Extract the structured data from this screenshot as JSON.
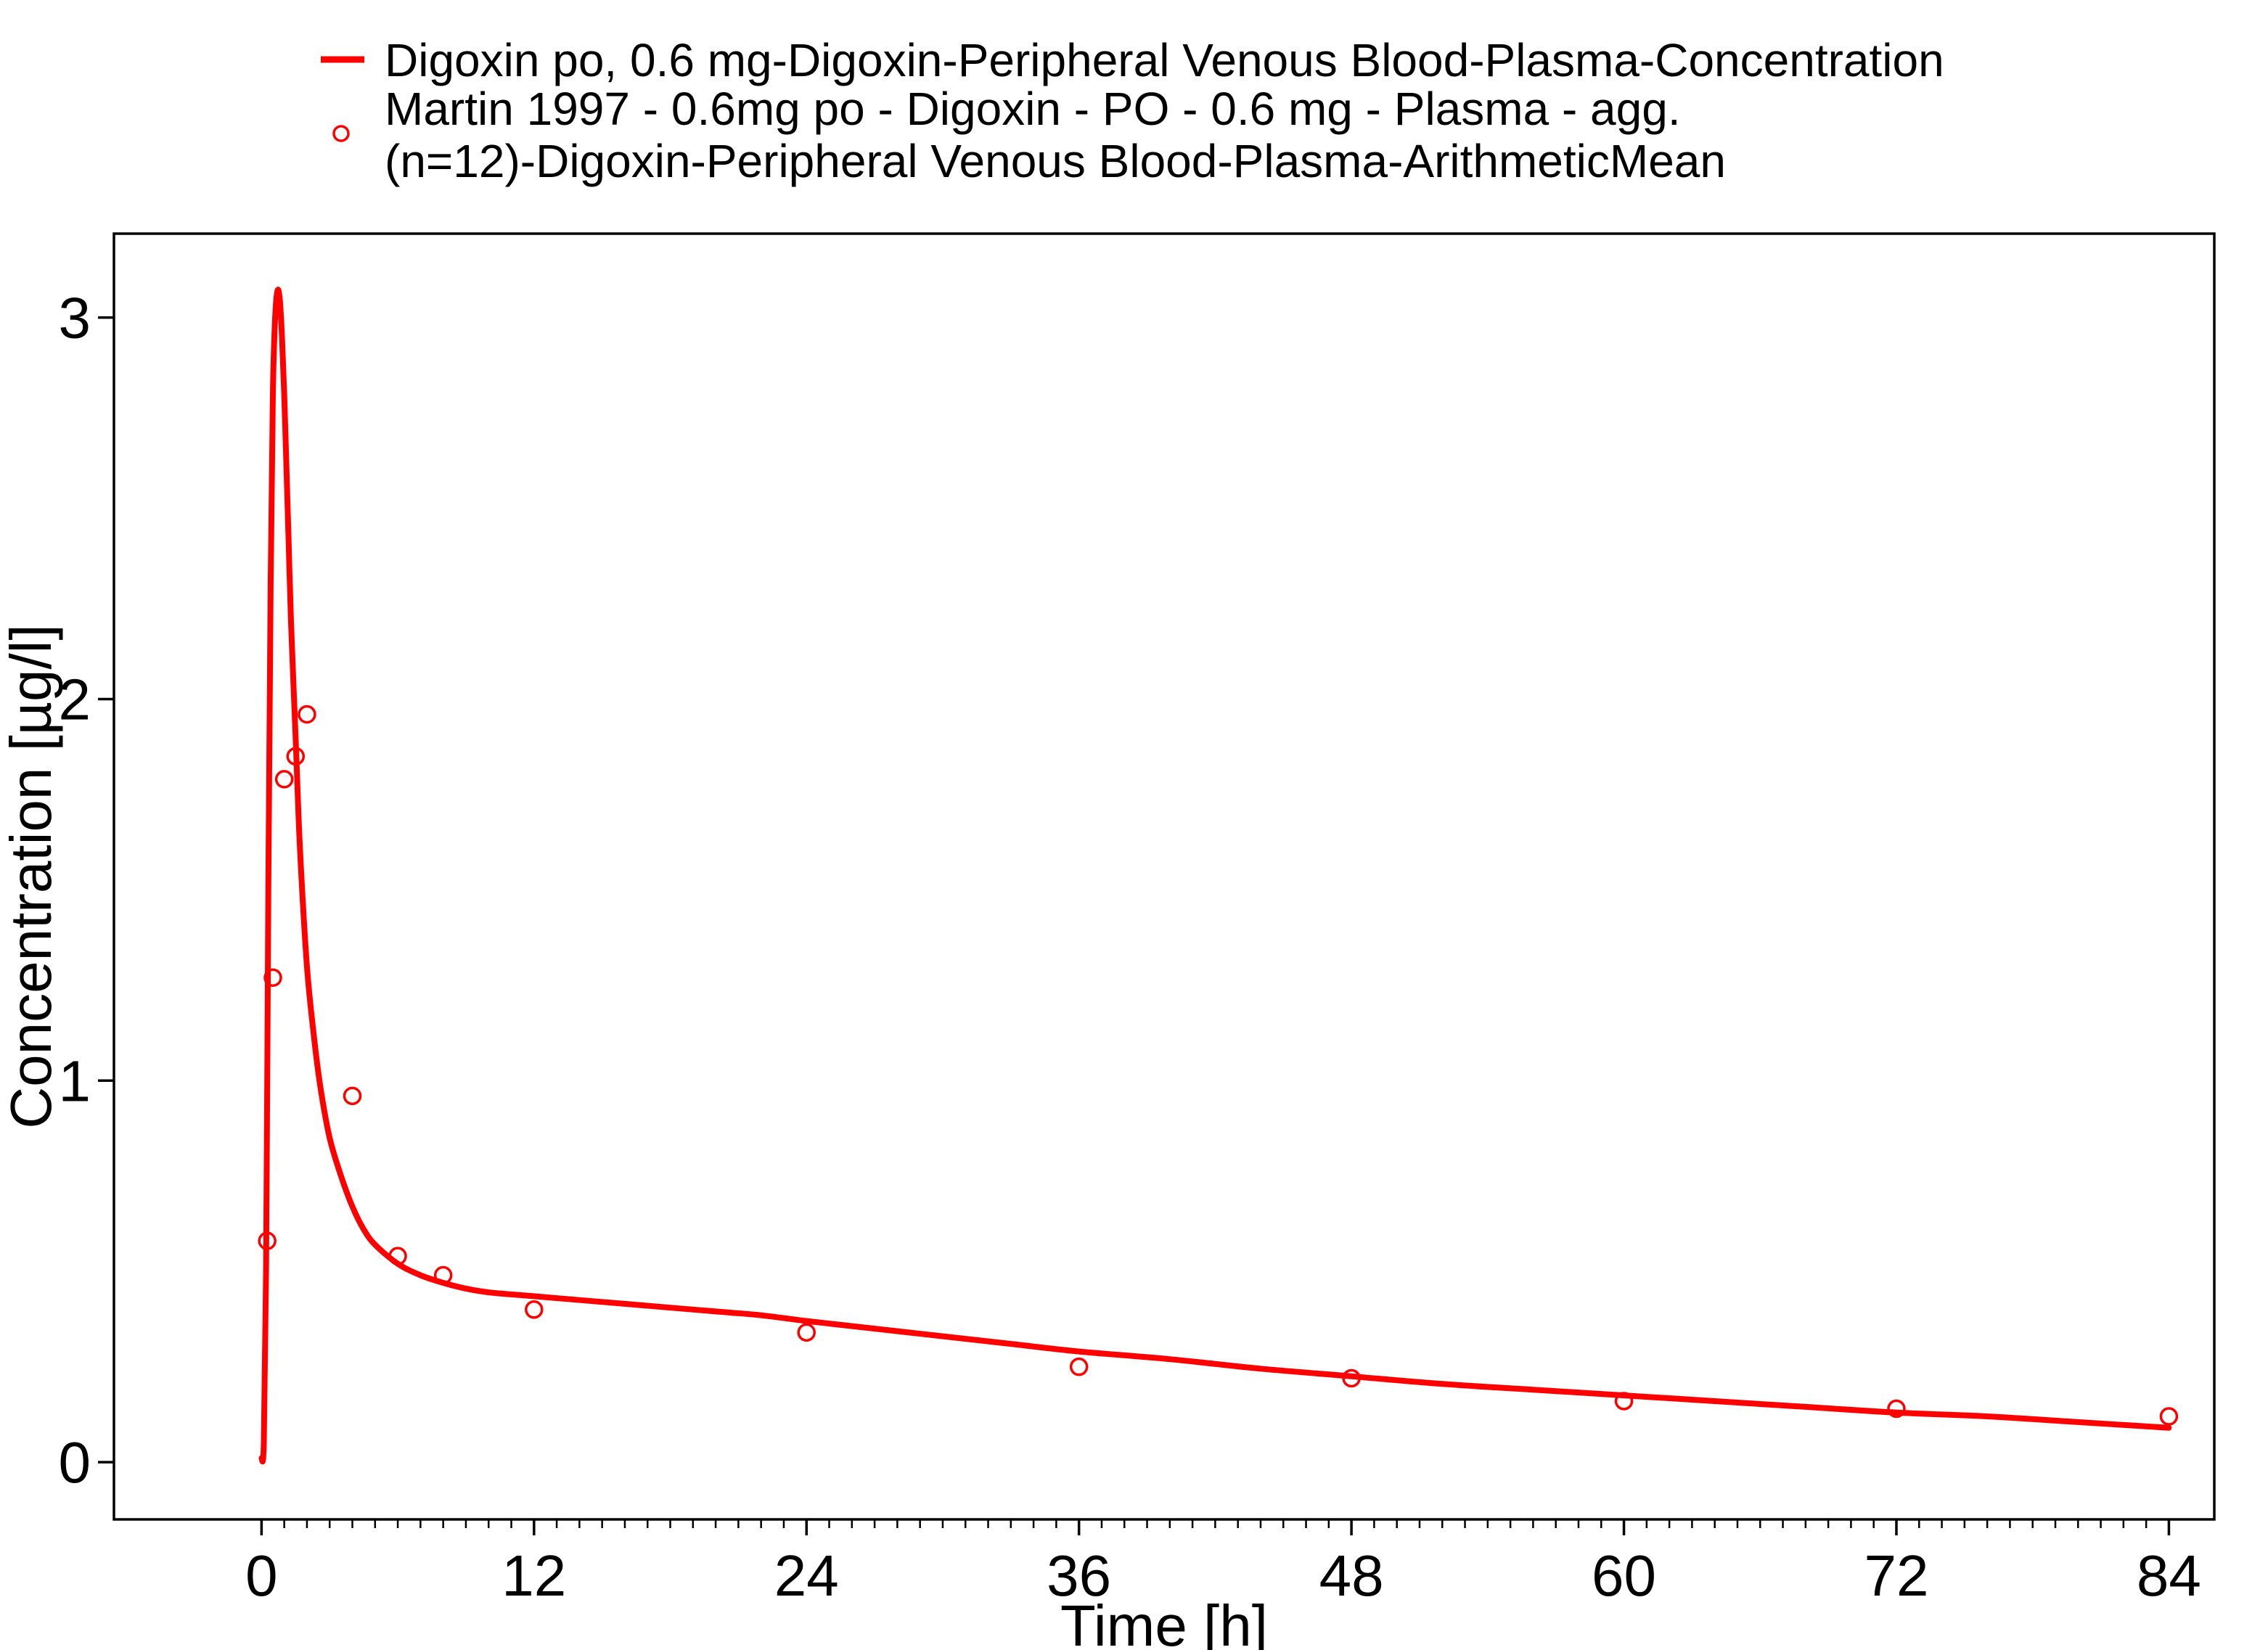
{
  "legend": {
    "line_label": "Digoxin po, 0.6 mg-Digoxin-Peripheral Venous Blood-Plasma-Concentration",
    "points_label_line1": "Martin 1997 - 0.6mg po - Digoxin - PO - 0.6 mg - Plasma - agg.",
    "points_label_line2": "(n=12)-Digoxin-Peripheral Venous Blood-Plasma-ArithmeticMean"
  },
  "colors": {
    "series": "#ff0000",
    "axis": "#000000",
    "background": "#ffffff"
  },
  "chart_data": {
    "type": "line",
    "title": "",
    "xlabel": "Time [h]",
    "ylabel": "Concentration [µg/l]",
    "xlim": [
      -6.5,
      86
    ],
    "ylim": [
      -0.15,
      3.22
    ],
    "x_ticks": [
      0,
      12,
      24,
      36,
      48,
      60,
      72,
      84
    ],
    "x_tick_labels": [
      "0",
      "12",
      "24",
      "36",
      "48",
      "60",
      "72",
      "84"
    ],
    "x_minor_tick_step": 1,
    "y_ticks": [
      0,
      1,
      2,
      3
    ],
    "y_tick_labels": [
      "0",
      "1",
      "2",
      "3"
    ],
    "grid": false,
    "legend_position": "top",
    "series": [
      {
        "name": "Digoxin po, 0.6 mg-Digoxin-Peripheral Venous Blood-Plasma-Concentration",
        "kind": "line",
        "x": [
          0,
          0.1,
          0.2,
          0.3,
          0.4,
          0.5,
          0.6,
          0.7,
          0.8,
          0.9,
          1.0,
          1.1,
          1.2,
          1.3,
          1.5,
          1.7,
          2.0,
          2.3,
          2.6,
          3.0,
          3.5,
          4.0,
          4.5,
          5.0,
          6.0,
          7.0,
          8.0,
          9.0,
          10,
          12,
          14,
          16,
          18,
          20,
          22,
          24,
          27,
          30,
          33,
          36,
          40,
          44,
          48,
          52,
          56,
          60,
          64,
          68,
          72,
          76,
          80,
          84
        ],
        "y": [
          0.01,
          0.05,
          0.5,
          1.5,
          2.3,
          2.8,
          3.0,
          3.07,
          3.05,
          2.95,
          2.8,
          2.6,
          2.4,
          2.2,
          1.9,
          1.6,
          1.3,
          1.12,
          0.98,
          0.85,
          0.75,
          0.67,
          0.61,
          0.57,
          0.52,
          0.49,
          0.47,
          0.455,
          0.445,
          0.435,
          0.425,
          0.415,
          0.405,
          0.395,
          0.385,
          0.37,
          0.35,
          0.33,
          0.31,
          0.29,
          0.27,
          0.245,
          0.225,
          0.205,
          0.19,
          0.175,
          0.16,
          0.145,
          0.13,
          0.12,
          0.105,
          0.09
        ]
      },
      {
        "name": "Martin 1997 - 0.6mg po - Digoxin - PO - 0.6 mg - Plasma - agg. (n=12)-Digoxin-Peripheral Venous Blood-Plasma-ArithmeticMean",
        "kind": "scatter",
        "x": [
          0.25,
          0.5,
          1.0,
          1.5,
          2.0,
          4.0,
          6.0,
          8.0,
          12.0,
          24.0,
          36.0,
          48.0,
          60.0,
          72.0,
          84.0
        ],
        "y": [
          0.58,
          1.27,
          1.79,
          1.85,
          1.96,
          0.96,
          0.54,
          0.49,
          0.4,
          0.34,
          0.25,
          0.22,
          0.16,
          0.14,
          0.12
        ]
      }
    ]
  }
}
